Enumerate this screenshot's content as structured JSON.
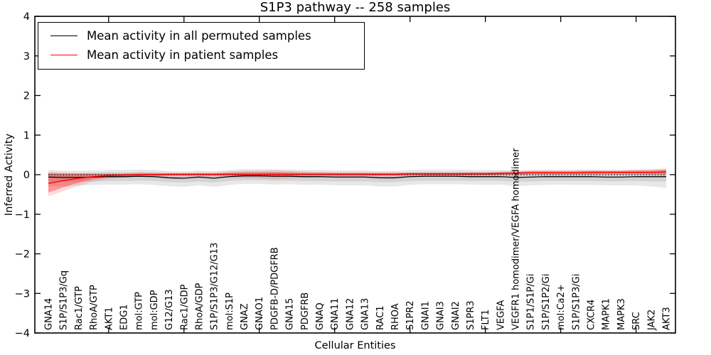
{
  "chart_data": {
    "type": "line",
    "title": "S1P3 pathway -- 258 samples",
    "xlabel": "Cellular Entities",
    "ylabel": "Inferred Activity",
    "ylim": [
      -4,
      4
    ],
    "yticks": [
      -4,
      -3,
      -2,
      -1,
      0,
      1,
      2,
      3,
      4
    ],
    "ytick_labels": [
      "−4",
      "−3",
      "−2",
      "−1",
      "0",
      "1",
      "2",
      "3",
      "4"
    ],
    "x_major_tick_indices": [
      4,
      9,
      14,
      19,
      24,
      29,
      34,
      39
    ],
    "grid": false,
    "legend_position": "upper left",
    "zero_line_value": 0,
    "colors": {
      "permuted_line": "#000000",
      "patient_line": "#ff0000",
      "permuted_band": "rgba(0,0,0,0.09)",
      "patient_band_inner": "rgba(255,0,0,0.32)",
      "patient_band_outer": "rgba(255,0,0,0.14)",
      "spine": "#000000",
      "background": "#ffffff"
    },
    "legend": [
      {
        "label": "Mean activity in all permuted samples",
        "color": "#000000"
      },
      {
        "label": "Mean activity in patient samples",
        "color": "#ff0000"
      }
    ],
    "categories": [
      "GNA14",
      "S1P/S1P3/Gq",
      "Rac1/GTP",
      "RhoA/GTP",
      "AKT1",
      "EDG1",
      "mol:GTP",
      "mol:GDP",
      "G12/G13",
      "Rac1/GDP",
      "RhoA/GDP",
      "S1P/S1P3/G12/G13",
      "mol:S1P",
      "GNAZ",
      "GNAO1",
      "PDGFB-D/PDGFRB",
      "GNA15",
      "PDGFRB",
      "GNAQ",
      "GNA11",
      "GNA12",
      "GNA13",
      "RAC1",
      "RHOA",
      "S1PR2",
      "GNAI1",
      "GNAI3",
      "GNAI2",
      "S1PR3",
      "FLT1",
      "VEGFA",
      "VEGFR1 homodimer/VEGFA homodimer",
      "S1P1/S1P/Gi",
      "S1P/S1P2/Gi",
      "mol:Ca2+",
      "S1P/S1P3/Gi",
      "CXCR4",
      "MAPK1",
      "MAPK3",
      "SRC",
      "JAK2",
      "AKT3"
    ],
    "series": [
      {
        "name": "Mean activity in all permuted samples",
        "color": "#000000",
        "values": [
          -0.06,
          -0.07,
          -0.07,
          -0.06,
          -0.05,
          -0.05,
          -0.04,
          -0.05,
          -0.08,
          -0.09,
          -0.06,
          -0.09,
          -0.05,
          -0.03,
          -0.03,
          -0.04,
          -0.04,
          -0.05,
          -0.05,
          -0.06,
          -0.06,
          -0.06,
          -0.08,
          -0.08,
          -0.05,
          -0.04,
          -0.04,
          -0.04,
          -0.05,
          -0.05,
          -0.05,
          -0.07,
          -0.06,
          -0.05,
          -0.05,
          -0.05,
          -0.05,
          -0.06,
          -0.06,
          -0.05,
          -0.05,
          -0.05
        ],
        "band_inner_upper": [
          0.05,
          0.04,
          0.04,
          0.05,
          0.06,
          0.06,
          0.07,
          0.06,
          0.03,
          0.02,
          0.05,
          0.02,
          0.06,
          0.08,
          0.08,
          0.07,
          0.07,
          0.06,
          0.06,
          0.05,
          0.05,
          0.05,
          0.03,
          0.03,
          0.06,
          0.07,
          0.07,
          0.07,
          0.06,
          0.06,
          0.06,
          0.04,
          0.05,
          0.06,
          0.06,
          0.06,
          0.06,
          0.05,
          0.05,
          0.06,
          0.06,
          0.07
        ],
        "band_inner_lower": [
          -0.17,
          -0.18,
          -0.18,
          -0.17,
          -0.16,
          -0.16,
          -0.15,
          -0.16,
          -0.19,
          -0.2,
          -0.17,
          -0.2,
          -0.16,
          -0.14,
          -0.14,
          -0.15,
          -0.15,
          -0.16,
          -0.16,
          -0.17,
          -0.17,
          -0.17,
          -0.19,
          -0.19,
          -0.16,
          -0.15,
          -0.15,
          -0.15,
          -0.16,
          -0.16,
          -0.16,
          -0.18,
          -0.17,
          -0.16,
          -0.16,
          -0.16,
          -0.16,
          -0.17,
          -0.17,
          -0.16,
          -0.17,
          -0.18
        ],
        "band_outer_upper": [
          0.12,
          0.1,
          0.1,
          0.11,
          0.12,
          0.12,
          0.13,
          0.12,
          0.09,
          0.08,
          0.11,
          0.08,
          0.12,
          0.14,
          0.14,
          0.13,
          0.13,
          0.12,
          0.12,
          0.11,
          0.11,
          0.11,
          0.09,
          0.09,
          0.12,
          0.13,
          0.13,
          0.13,
          0.12,
          0.12,
          0.12,
          0.1,
          0.11,
          0.12,
          0.12,
          0.12,
          0.12,
          0.11,
          0.11,
          0.12,
          0.13,
          0.14
        ],
        "band_outer_lower": [
          -0.29,
          -0.29,
          -0.28,
          -0.26,
          -0.25,
          -0.25,
          -0.24,
          -0.26,
          -0.29,
          -0.31,
          -0.27,
          -0.31,
          -0.26,
          -0.23,
          -0.23,
          -0.25,
          -0.24,
          -0.26,
          -0.25,
          -0.27,
          -0.27,
          -0.27,
          -0.3,
          -0.3,
          -0.26,
          -0.24,
          -0.24,
          -0.24,
          -0.25,
          -0.26,
          -0.25,
          -0.29,
          -0.27,
          -0.26,
          -0.25,
          -0.26,
          -0.26,
          -0.27,
          -0.27,
          -0.27,
          -0.3,
          -0.33
        ]
      },
      {
        "name": "Mean activity in patient samples",
        "color": "#ff0000",
        "values": [
          -0.22,
          -0.15,
          -0.09,
          -0.05,
          -0.02,
          -0.01,
          0.0,
          0.0,
          0.01,
          0.01,
          0.01,
          0.01,
          0.01,
          0.01,
          0.01,
          0.01,
          0.01,
          0.01,
          0.01,
          0.01,
          0.01,
          0.01,
          0.01,
          0.01,
          0.02,
          0.02,
          0.02,
          0.02,
          0.02,
          0.02,
          0.03,
          0.04,
          0.05,
          0.05,
          0.05,
          0.05,
          0.06,
          0.06,
          0.06,
          0.06,
          0.06,
          0.07
        ],
        "band_inner_upper": [
          0.03,
          0.02,
          0.02,
          0.02,
          0.02,
          0.02,
          0.03,
          0.03,
          0.03,
          0.03,
          0.03,
          0.03,
          0.04,
          0.05,
          0.05,
          0.06,
          0.05,
          0.04,
          0.04,
          0.04,
          0.04,
          0.04,
          0.04,
          0.04,
          0.04,
          0.04,
          0.04,
          0.04,
          0.05,
          0.05,
          0.06,
          0.07,
          0.08,
          0.08,
          0.08,
          0.08,
          0.09,
          0.09,
          0.09,
          0.1,
          0.1,
          0.12
        ],
        "band_inner_lower": [
          -0.45,
          -0.32,
          -0.2,
          -0.11,
          -0.06,
          -0.04,
          -0.03,
          -0.03,
          -0.02,
          -0.02,
          -0.02,
          -0.02,
          -0.02,
          -0.03,
          -0.03,
          -0.04,
          -0.03,
          -0.02,
          -0.02,
          -0.02,
          -0.02,
          -0.02,
          -0.02,
          -0.02,
          -0.01,
          -0.01,
          -0.01,
          -0.01,
          -0.01,
          0.0,
          0.0,
          0.01,
          0.02,
          0.02,
          0.02,
          0.02,
          0.02,
          0.03,
          0.03,
          0.03,
          0.02,
          0.02
        ],
        "band_outer_upper": [
          0.07,
          0.05,
          0.04,
          0.03,
          0.03,
          0.03,
          0.05,
          0.05,
          0.05,
          0.05,
          0.05,
          0.06,
          0.08,
          0.1,
          0.1,
          0.12,
          0.1,
          0.08,
          0.07,
          0.06,
          0.06,
          0.06,
          0.06,
          0.06,
          0.06,
          0.06,
          0.06,
          0.06,
          0.07,
          0.07,
          0.08,
          0.1,
          0.11,
          0.11,
          0.11,
          0.11,
          0.12,
          0.12,
          0.12,
          0.13,
          0.14,
          0.16
        ],
        "band_outer_lower": [
          -0.55,
          -0.42,
          -0.28,
          -0.17,
          -0.1,
          -0.07,
          -0.06,
          -0.06,
          -0.05,
          -0.05,
          -0.05,
          -0.06,
          -0.07,
          -0.09,
          -0.09,
          -0.11,
          -0.09,
          -0.07,
          -0.06,
          -0.05,
          -0.05,
          -0.05,
          -0.05,
          -0.05,
          -0.04,
          -0.04,
          -0.04,
          -0.04,
          -0.04,
          -0.03,
          -0.02,
          -0.02,
          -0.01,
          -0.01,
          -0.01,
          -0.01,
          0.0,
          0.0,
          0.0,
          0.0,
          -0.01,
          -0.02
        ]
      }
    ]
  }
}
